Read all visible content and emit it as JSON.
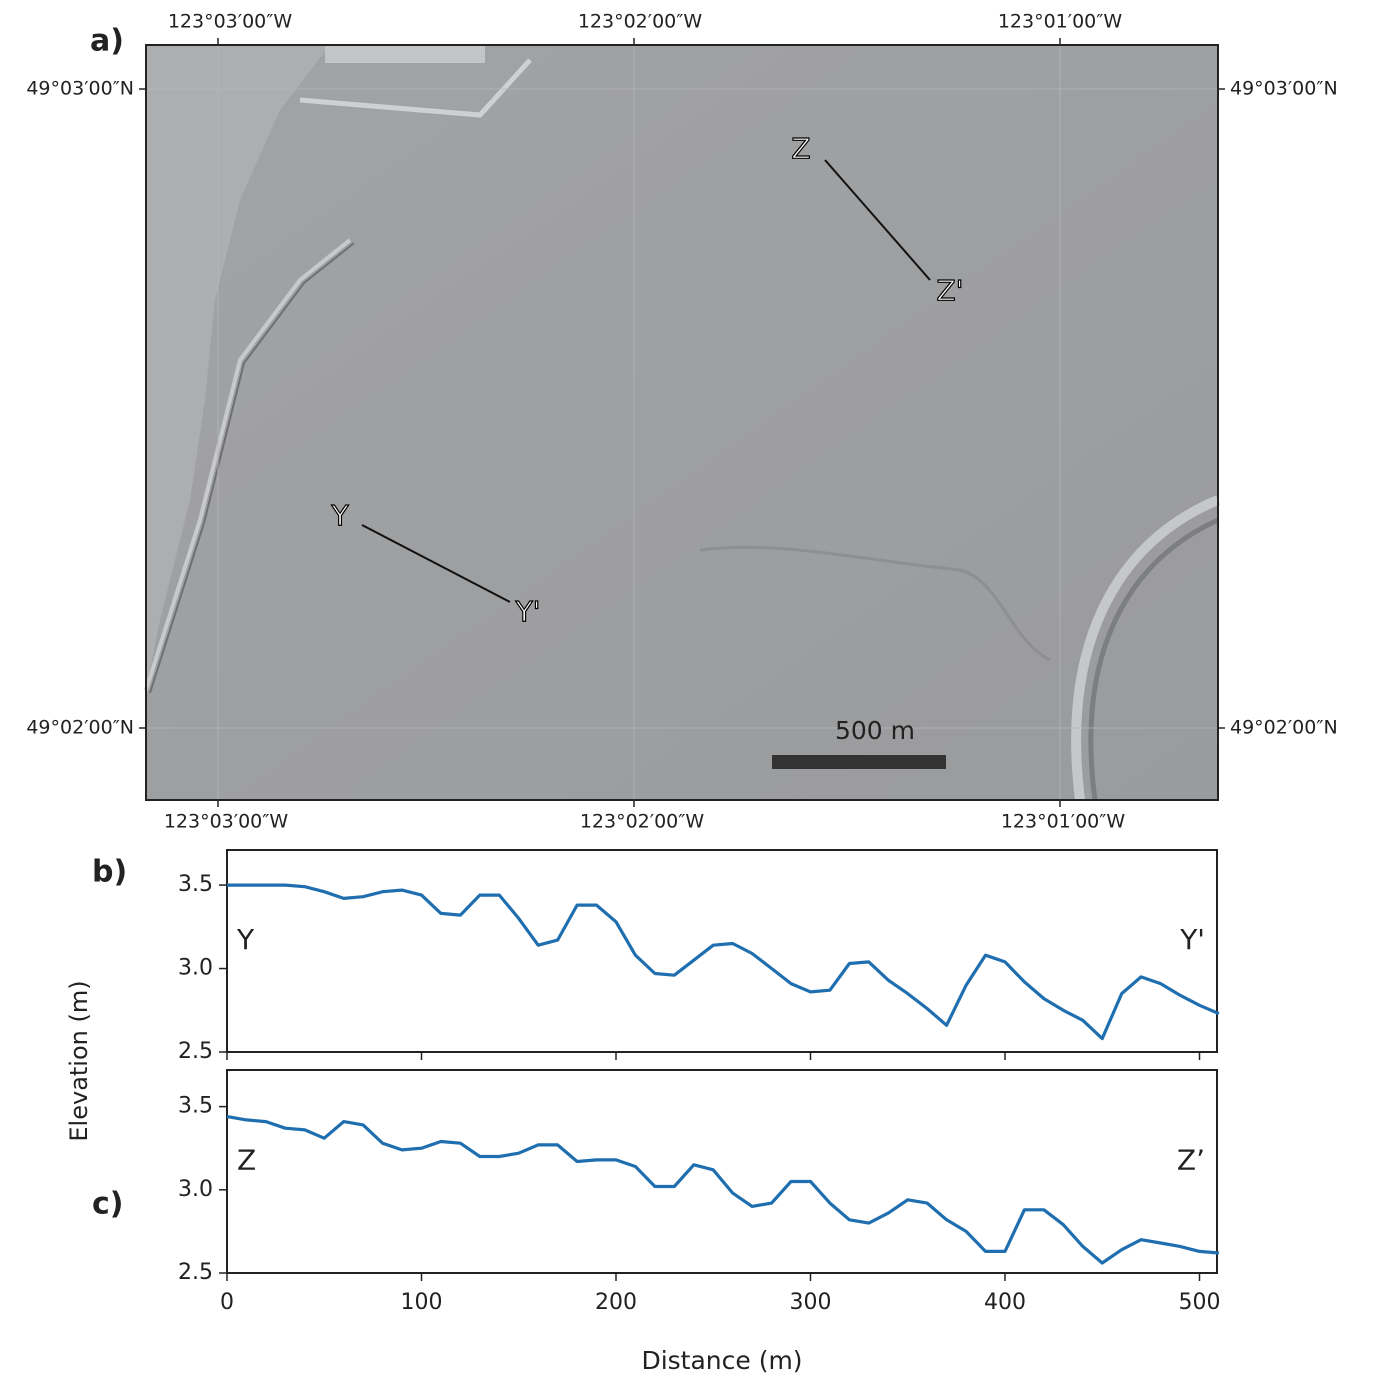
{
  "map": {
    "panel_label": "a)",
    "lon_ticks": [
      "123°03′00″W",
      "123°02′00″W",
      "123°01′00″W"
    ],
    "lat_ticks": [
      "49°03′00″N",
      "49°02′00″N"
    ],
    "profiles": [
      {
        "start": "Y",
        "end": "Y'"
      },
      {
        "start": "Z",
        "end": "Z'"
      }
    ],
    "scale_bar": "500 m"
  },
  "chart_data": [
    {
      "type": "line",
      "panel_label": "b)",
      "ylabel": "Elevation (m)",
      "annotations": [
        "Y",
        "Y'"
      ],
      "x": [
        0,
        10,
        20,
        30,
        40,
        50,
        60,
        70,
        80,
        90,
        100,
        110,
        120,
        130,
        140,
        150,
        160,
        170,
        180,
        190,
        200,
        210,
        220,
        230,
        240,
        250,
        260,
        270,
        280,
        290,
        300,
        310,
        320,
        330,
        340,
        350,
        360,
        370,
        380,
        390,
        400,
        410,
        420,
        430,
        440,
        450,
        460,
        470,
        480,
        490,
        500,
        510
      ],
      "series": [
        {
          "color": "#1f6fb0",
          "values": [
            3.5,
            3.5,
            3.5,
            3.5,
            3.49,
            3.46,
            3.42,
            3.43,
            3.46,
            3.47,
            3.44,
            3.33,
            3.32,
            3.44,
            3.44,
            3.3,
            3.14,
            3.17,
            3.38,
            3.38,
            3.28,
            3.08,
            2.97,
            2.96,
            3.05,
            3.14,
            3.15,
            3.09,
            3.0,
            2.91,
            2.86,
            2.87,
            3.03,
            3.04,
            2.93,
            2.85,
            2.76,
            2.66,
            2.9,
            3.08,
            3.04,
            2.92,
            2.82,
            2.75,
            2.69,
            2.58,
            2.85,
            2.95,
            2.91,
            2.84,
            2.78,
            2.73
          ]
        }
      ],
      "xlim": [
        0,
        509
      ],
      "ylim": [
        2.5,
        3.71
      ],
      "xticks": [
        0,
        100,
        200,
        300,
        400,
        500
      ],
      "show_xtick_labels": false,
      "yticks": [
        2.5,
        {
          "value": 3,
          "label": "3.0"
        },
        3.5
      ]
    },
    {
      "type": "line",
      "panel_label": "c)",
      "xlabel": "Distance (m)",
      "annotations": [
        "Z",
        "Z’"
      ],
      "x": [
        0,
        10,
        20,
        30,
        40,
        50,
        60,
        70,
        80,
        90,
        100,
        110,
        120,
        130,
        140,
        150,
        160,
        170,
        180,
        190,
        200,
        210,
        220,
        230,
        240,
        250,
        260,
        270,
        280,
        290,
        300,
        310,
        320,
        330,
        340,
        350,
        360,
        370,
        380,
        390,
        400,
        410,
        420,
        430,
        440,
        450,
        460,
        470,
        480,
        490,
        500,
        510
      ],
      "series": [
        {
          "color": "#1f6fb0",
          "values": [
            3.44,
            3.42,
            3.41,
            3.37,
            3.36,
            3.31,
            3.41,
            3.39,
            3.28,
            3.24,
            3.25,
            3.29,
            3.28,
            3.2,
            3.2,
            3.22,
            3.27,
            3.27,
            3.17,
            3.18,
            3.18,
            3.14,
            3.02,
            3.02,
            3.15,
            3.12,
            2.98,
            2.9,
            2.92,
            3.05,
            3.05,
            2.92,
            2.82,
            2.8,
            2.86,
            2.94,
            2.92,
            2.82,
            2.75,
            2.63,
            2.63,
            2.88,
            2.88,
            2.79,
            2.66,
            2.56,
            2.64,
            2.7,
            2.68,
            2.66,
            2.63,
            2.62
          ]
        }
      ],
      "xlim": [
        0,
        509
      ],
      "ylim": [
        2.5,
        3.72
      ],
      "xticks": [
        0,
        100,
        200,
        300,
        400,
        500
      ],
      "show_xtick_labels": true,
      "yticks": [
        2.5,
        {
          "value": 3,
          "label": "3.0"
        },
        3.5
      ]
    }
  ]
}
